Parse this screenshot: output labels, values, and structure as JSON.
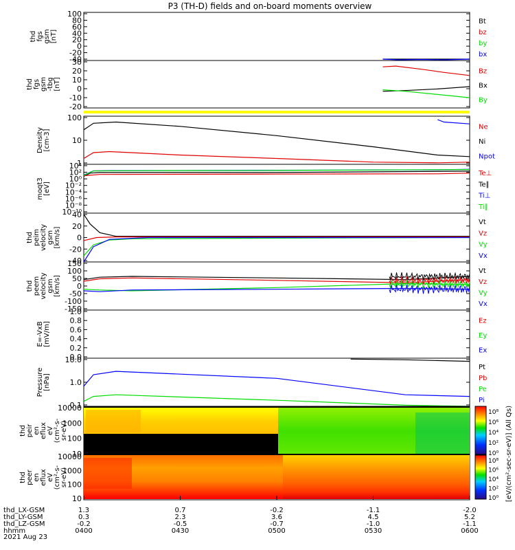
{
  "title": "P3 (TH-D) fields and on-board moments overview",
  "colors": {
    "black": "#000000",
    "red": "#e00000",
    "green": "#00dd00",
    "blue": "#0000ff",
    "yellow": "#ffff00"
  },
  "x_axis": {
    "rows": [
      {
        "label": "thd_LX-GSM",
        "values": [
          "1.3",
          "0.7",
          "-0.2",
          "-1.1",
          "-2.0"
        ]
      },
      {
        "label": "thd_LY-GSM",
        "values": [
          "0.3",
          "2.3",
          "3.6",
          "4.5",
          "5.2"
        ]
      },
      {
        "label": "thd_LZ-GSM",
        "values": [
          "-0.2",
          "-0.5",
          "-0.7",
          "-1.0",
          "-1.1"
        ]
      },
      {
        "label": "hhmm",
        "values": [
          "0400",
          "0430",
          "0500",
          "0530",
          "0600"
        ]
      }
    ],
    "date": "2021 Aug 23",
    "range_min": [
      0,
      120
    ]
  },
  "colorbar": {
    "label": "[eV/(cm²-sec-sr-eV)] (All Qs)",
    "ticks": [
      "10⁸",
      "10⁶",
      "10⁴",
      "10²",
      "10⁰"
    ]
  },
  "chart_data": [
    {
      "type": "line",
      "ylabel": [
        "thd",
        "fgs",
        "gsm",
        "[nT]"
      ],
      "ylim": [
        -40,
        100
      ],
      "ticks": [
        "100",
        "80",
        "60",
        "40",
        "20",
        "0",
        "-20",
        "-40"
      ],
      "legend": [
        {
          "name": "Bt",
          "color": "#000000"
        },
        {
          "name": "bz",
          "color": "#e00000"
        },
        {
          "name": "by",
          "color": "#00dd00"
        },
        {
          "name": "bx",
          "color": "#0000ff"
        }
      ],
      "series": [
        {
          "name": "Bt",
          "color": "#000000",
          "x": [
            93,
            120
          ],
          "y": [
            -36,
            -36
          ]
        },
        {
          "name": "bx",
          "color": "#0000ff",
          "x": [
            93,
            98,
            105,
            112,
            120
          ],
          "y": [
            -36,
            -38,
            -37,
            -38,
            -36
          ]
        }
      ]
    },
    {
      "type": "line",
      "ylabel": [
        "thd",
        "fgs",
        "gsm",
        "-tbg",
        "[nT]"
      ],
      "ylim": [
        -25,
        35
      ],
      "ticks": [
        "30",
        "20",
        "10",
        "0",
        "-10",
        "-20"
      ],
      "legend": [
        {
          "name": "Bz",
          "color": "#e00000"
        },
        {
          "name": "Bx",
          "color": "#000000"
        },
        {
          "name": "By",
          "color": "#00dd00"
        }
      ],
      "series": [
        {
          "name": "Bz",
          "color": "#e00000",
          "x": [
            93,
            97,
            105,
            112,
            120
          ],
          "y": [
            27,
            28,
            24,
            20,
            16
          ]
        },
        {
          "name": "Bx",
          "color": "#000000",
          "x": [
            93,
            100,
            110,
            120
          ],
          "y": [
            -4,
            -3,
            -1,
            2
          ]
        },
        {
          "name": "By",
          "color": "#00dd00",
          "x": [
            93,
            100,
            110,
            120
          ],
          "y": [
            -2,
            -4,
            -8,
            -12
          ]
        }
      ]
    },
    {
      "type": "bar",
      "name": "flag",
      "color": "#ffff00"
    },
    {
      "type": "line",
      "ylabel": [
        "Density",
        "[cm-3]"
      ],
      "ylim": [
        1,
        300
      ],
      "scale": "log",
      "ticks": [
        "100",
        "10",
        "1"
      ],
      "legend": [
        {
          "name": "Ne",
          "color": "#e00000"
        },
        {
          "name": "Ni",
          "color": "#000000"
        },
        {
          "name": "Npot",
          "color": "#0000ff"
        }
      ],
      "series": [
        {
          "name": "Ni",
          "color": "#000000",
          "x": [
            0,
            3,
            10,
            30,
            60,
            90,
            110,
            120
          ],
          "y": [
            60,
            130,
            150,
            90,
            30,
            8,
            3,
            2.5
          ]
        },
        {
          "name": "Ne",
          "color": "#e00000",
          "x": [
            0,
            3,
            8,
            30,
            60,
            90,
            110,
            120
          ],
          "y": [
            2,
            4,
            4.5,
            3,
            2,
            1.3,
            1.2,
            1.3
          ]
        },
        {
          "name": "Npot",
          "color": "#0000ff",
          "x": [
            110,
            112,
            120
          ],
          "y": [
            200,
            150,
            120
          ]
        }
      ]
    },
    {
      "type": "line",
      "ylabel": [
        "moqt3",
        "[eV]"
      ],
      "ylim": [
        1e-10,
        100000.0
      ],
      "scale": "log",
      "ticks": [
        "10⁴",
        "10²",
        "10⁰",
        "10⁻²",
        "10⁻⁴",
        "10⁻⁶",
        "10⁻⁸",
        "10⁻¹⁰"
      ],
      "legend": [
        {
          "name": "Te⊥",
          "color": "#e00000"
        },
        {
          "name": "Te∥",
          "color": "#000000"
        },
        {
          "name": "Ti⊥",
          "color": "#0000ff"
        },
        {
          "name": "Ti∥",
          "color": "#00dd00"
        }
      ],
      "series": [
        {
          "name": "Te∥",
          "color": "#000000",
          "x": [
            0,
            2,
            5,
            60,
            120
          ],
          "y": [
            20,
            200,
            300,
            300,
            800
          ]
        },
        {
          "name": "Te⊥",
          "color": "#e00000",
          "x": [
            0,
            5,
            60,
            110,
            120
          ],
          "y": [
            30,
            80,
            100,
            120,
            200
          ]
        },
        {
          "name": "Ti⊥",
          "color": "#0000ff",
          "x": [
            0,
            3,
            10,
            60,
            110,
            120
          ],
          "y": [
            50,
            1000,
            1200,
            1500,
            2000,
            3000
          ]
        },
        {
          "name": "Ti∥",
          "color": "#00dd00",
          "x": [
            0,
            3,
            10,
            60,
            120
          ],
          "y": [
            40,
            900,
            1100,
            1300,
            2500
          ]
        }
      ]
    },
    {
      "type": "line",
      "ylabel": [
        "thd",
        "peim",
        "velocity",
        "gsm",
        "[km/s]"
      ],
      "ylim": [
        -40,
        40
      ],
      "ticks": [
        "40",
        "20",
        "0",
        "-20",
        "-40"
      ],
      "legend": [
        {
          "name": "Vt",
          "color": "#000000"
        },
        {
          "name": "Vz",
          "color": "#e00000"
        },
        {
          "name": "Vy",
          "color": "#00dd00"
        },
        {
          "name": "Vx",
          "color": "#0000ff"
        }
      ],
      "series": [
        {
          "name": "Vt",
          "color": "#000000",
          "x": [
            0,
            2,
            5,
            10,
            60,
            120
          ],
          "y": [
            38,
            22,
            8,
            2,
            2,
            2
          ]
        },
        {
          "name": "Vz",
          "color": "#e00000",
          "x": [
            0,
            4,
            10,
            60,
            120
          ],
          "y": [
            -5,
            0,
            1,
            1,
            1
          ]
        },
        {
          "name": "Vy",
          "color": "#00dd00",
          "x": [
            0,
            3,
            8,
            15,
            60,
            120
          ],
          "y": [
            -30,
            -12,
            -4,
            -2,
            -1,
            0
          ]
        },
        {
          "name": "Vx",
          "color": "#0000ff",
          "x": [
            0,
            3,
            8,
            20,
            120
          ],
          "y": [
            -40,
            -15,
            -3,
            0,
            0
          ]
        }
      ]
    },
    {
      "type": "line",
      "ylabel": [
        "thd",
        "peem",
        "velocity",
        "gsm",
        "[km/s]"
      ],
      "ylim": [
        -150,
        150
      ],
      "ticks": [
        "150",
        "100",
        "50",
        "0",
        "-50",
        "-100",
        "-150"
      ],
      "legend": [
        {
          "name": "Vt",
          "color": "#000000"
        },
        {
          "name": "Vz",
          "color": "#e00000"
        },
        {
          "name": "Vy",
          "color": "#00dd00"
        },
        {
          "name": "Vx",
          "color": "#0000ff"
        }
      ],
      "series": [
        {
          "name": "Vt",
          "color": "#000000",
          "x": [
            0,
            5,
            15,
            60,
            100,
            120
          ],
          "y": [
            40,
            55,
            60,
            50,
            40,
            60
          ]
        },
        {
          "name": "Vz",
          "color": "#e00000",
          "x": [
            0,
            5,
            15,
            60,
            100,
            120
          ],
          "y": [
            30,
            45,
            50,
            35,
            20,
            40
          ]
        },
        {
          "name": "Vy",
          "color": "#00dd00",
          "x": [
            0,
            5,
            15,
            60,
            100,
            120
          ],
          "y": [
            -20,
            -25,
            -30,
            -10,
            15,
            10
          ]
        },
        {
          "name": "Vx",
          "color": "#0000ff",
          "x": [
            0,
            5,
            15,
            60,
            100,
            120
          ],
          "y": [
            -30,
            -35,
            -25,
            -20,
            -15,
            -20
          ]
        }
      ]
    },
    {
      "type": "line",
      "ylabel": [
        "E=-VxB",
        "[mV/m]"
      ],
      "ylim": [
        0,
        1
      ],
      "ticks": [
        "1.0",
        "0.8",
        "0.6",
        "0.4",
        "0.2",
        "0.0"
      ],
      "legend": [
        {
          "name": "Ez",
          "color": "#e00000"
        },
        {
          "name": "Ey",
          "color": "#00dd00"
        },
        {
          "name": "Ex",
          "color": "#0000ff"
        }
      ],
      "series": []
    },
    {
      "type": "line",
      "ylabel": [
        "Pressure",
        "[nPa]"
      ],
      "ylim": [
        0.03,
        25
      ],
      "scale": "log",
      "ticks": [
        "10.0",
        "1.0",
        "0.1"
      ],
      "legend": [
        {
          "name": "Pt",
          "color": "#000000"
        },
        {
          "name": "Pb",
          "color": "#e00000"
        },
        {
          "name": "Pe",
          "color": "#00dd00"
        },
        {
          "name": "Pi",
          "color": "#0000ff"
        }
      ],
      "series": [
        {
          "name": "Pt",
          "color": "#000000",
          "x": [
            83,
            100,
            120
          ],
          "y": [
            22,
            20,
            16
          ]
        },
        {
          "name": "Pi",
          "color": "#0000ff",
          "x": [
            0,
            3,
            10,
            60,
            100,
            120
          ],
          "y": [
            0.5,
            2.5,
            4,
            1.5,
            0.15,
            0.12
          ]
        },
        {
          "name": "Pe",
          "color": "#00dd00",
          "x": [
            0,
            3,
            10,
            60,
            100,
            120
          ],
          "y": [
            0.06,
            0.12,
            0.15,
            0.07,
            0.035,
            0.03
          ]
        }
      ]
    },
    {
      "type": "heatmap",
      "ylabel": [
        "thd",
        "peir",
        "en",
        "eflux",
        "eV",
        "(cm²-s-",
        "sr-eV)"
      ],
      "ylim": [
        5,
        20000
      ],
      "scale": "log",
      "ticks": [
        "10000",
        "1000",
        "100",
        "10"
      ]
    },
    {
      "type": "heatmap",
      "ylabel": [
        "thd",
        "peer",
        "en",
        "eflux",
        "eV",
        "(cm²-s-",
        "sr-eV)"
      ],
      "ylim": [
        5,
        20000
      ],
      "scale": "log",
      "ticks": [
        "10000",
        "1000",
        "100",
        "10"
      ]
    }
  ]
}
